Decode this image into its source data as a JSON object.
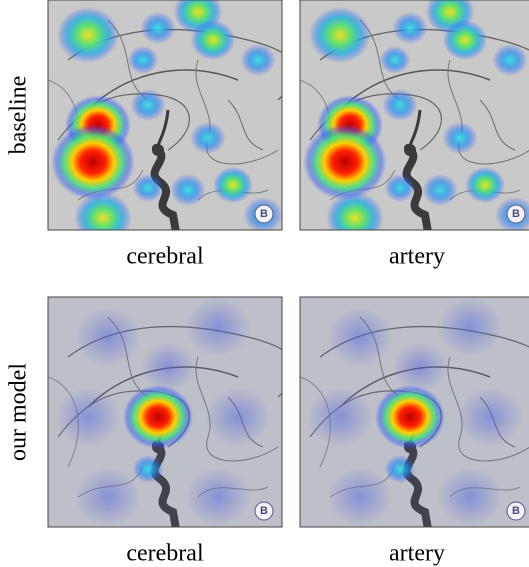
{
  "rows": [
    {
      "label": "baseline",
      "panels": [
        {
          "caption": "cerebral",
          "badge": "B"
        },
        {
          "caption": "artery",
          "badge": "B"
        }
      ]
    },
    {
      "label": "our model",
      "panels": [
        {
          "caption": "cerebral",
          "badge": "B"
        },
        {
          "caption": "artery",
          "badge": "B"
        }
      ]
    }
  ]
}
